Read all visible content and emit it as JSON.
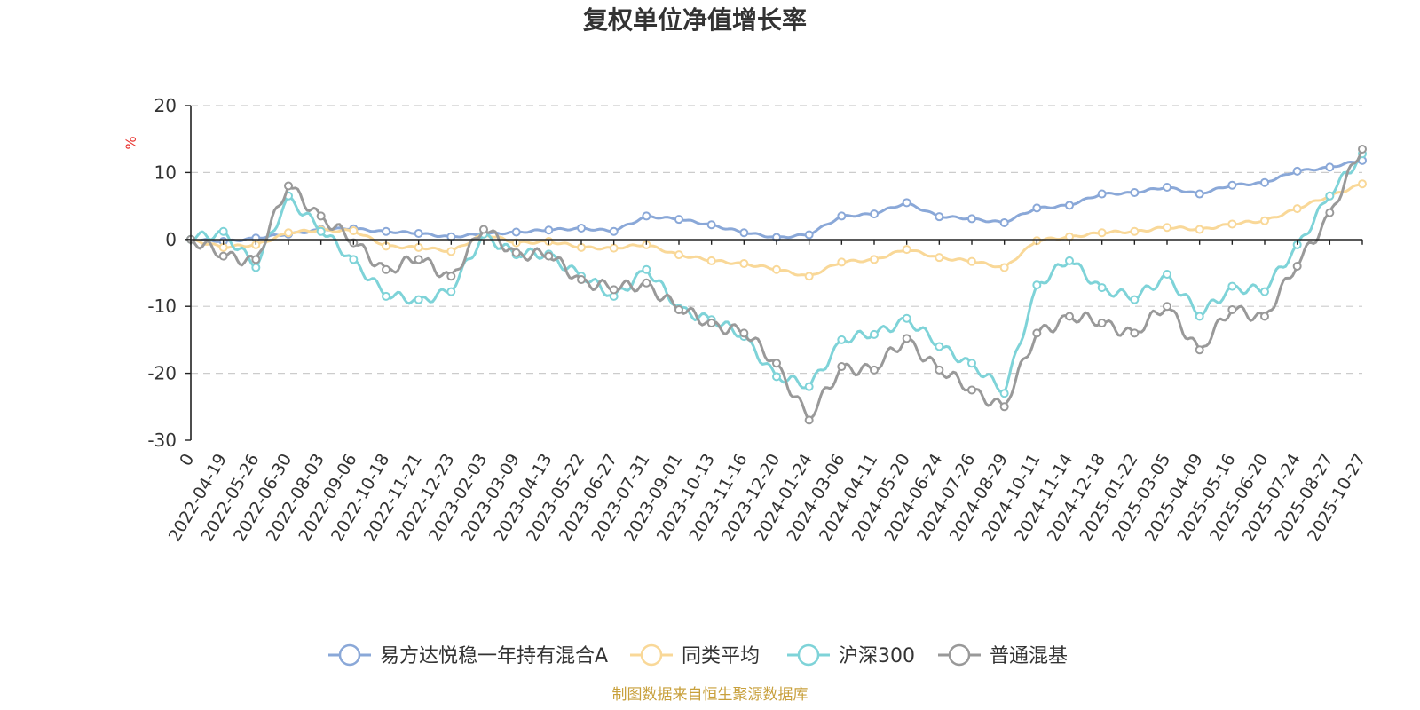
{
  "chart_data": {
    "type": "line",
    "title": "复权单位净值增长率",
    "ylabel": "%",
    "xlabel": "",
    "ylim": [
      -30,
      20
    ],
    "yticks": [
      20,
      10,
      0,
      -10,
      -20,
      -30
    ],
    "source": "制图数据来自恒生聚源数据库",
    "x": [
      "0",
      "2022-04-19",
      "2022-05-26",
      "2022-06-30",
      "2022-08-03",
      "2022-09-06",
      "2022-10-18",
      "2022-11-21",
      "2022-12-23",
      "2023-02-03",
      "2023-03-09",
      "2023-04-13",
      "2023-05-22",
      "2023-06-27",
      "2023-07-31",
      "2023-09-01",
      "2023-10-13",
      "2023-11-16",
      "2023-12-20",
      "2024-01-24",
      "2024-03-06",
      "2024-04-11",
      "2024-05-20",
      "2024-06-24",
      "2024-07-26",
      "2024-08-29",
      "2024-10-11",
      "2024-11-14",
      "2024-12-18",
      "2025-01-22",
      "2025-03-05",
      "2025-04-09",
      "2025-05-16",
      "2025-06-20",
      "2025-07-24",
      "2025-08-27",
      "2025-10-27"
    ],
    "series": [
      {
        "name": "易方达悦稳一年持有混合A",
        "color": "#8aa8d8",
        "values": [
          0,
          -0.3,
          0.2,
          0.8,
          1.5,
          1.6,
          1.2,
          0.9,
          0.4,
          0.8,
          1.1,
          1.4,
          1.7,
          1.2,
          3.5,
          3.0,
          2.2,
          1.0,
          0.3,
          0.7,
          3.5,
          3.8,
          5.5,
          3.4,
          3.1,
          2.5,
          4.7,
          5.1,
          6.8,
          7.0,
          7.8,
          6.8,
          8.1,
          8.5,
          10.2,
          10.8,
          11.8
        ]
      },
      {
        "name": "同类平均",
        "color": "#f9d898",
        "values": [
          0,
          -1.2,
          -0.8,
          1.0,
          1.4,
          1.3,
          -1.0,
          -1.2,
          -1.8,
          0.8,
          -0.5,
          -0.3,
          -1.2,
          -1.3,
          -0.8,
          -2.3,
          -3.2,
          -3.6,
          -4.5,
          -5.5,
          -3.4,
          -3.0,
          -1.5,
          -2.7,
          -3.3,
          -4.2,
          -0.2,
          0.4,
          1.0,
          1.2,
          1.8,
          1.5,
          2.3,
          2.8,
          4.6,
          6.5,
          8.3
        ]
      },
      {
        "name": "沪深300",
        "color": "#7ed3d8",
        "values": [
          0,
          1.2,
          -4.2,
          6.5,
          1.2,
          -3.0,
          -8.5,
          -9.0,
          -7.8,
          0.8,
          -2.3,
          -2.2,
          -5.5,
          -8.5,
          -4.5,
          -10.3,
          -12.0,
          -14.5,
          -20.5,
          -22.0,
          -15.0,
          -14.2,
          -11.8,
          -16.0,
          -18.5,
          -23.0,
          -6.8,
          -3.2,
          -7.2,
          -9.0,
          -5.2,
          -11.5,
          -7.0,
          -7.8,
          -0.8,
          6.5,
          12.8
        ]
      },
      {
        "name": "普通混基",
        "color": "#999999",
        "values": [
          0,
          -2.5,
          -3.0,
          8.0,
          3.5,
          -0.5,
          -4.5,
          -3.0,
          -5.5,
          1.5,
          -2.0,
          -2.5,
          -6.0,
          -7.5,
          -6.5,
          -10.5,
          -12.5,
          -14.0,
          -18.5,
          -27.0,
          -19.0,
          -19.5,
          -14.8,
          -19.5,
          -22.5,
          -25.0,
          -14.0,
          -11.5,
          -12.5,
          -14.0,
          -10.0,
          -16.5,
          -10.5,
          -11.5,
          -4.0,
          4.0,
          13.5
        ]
      }
    ]
  }
}
